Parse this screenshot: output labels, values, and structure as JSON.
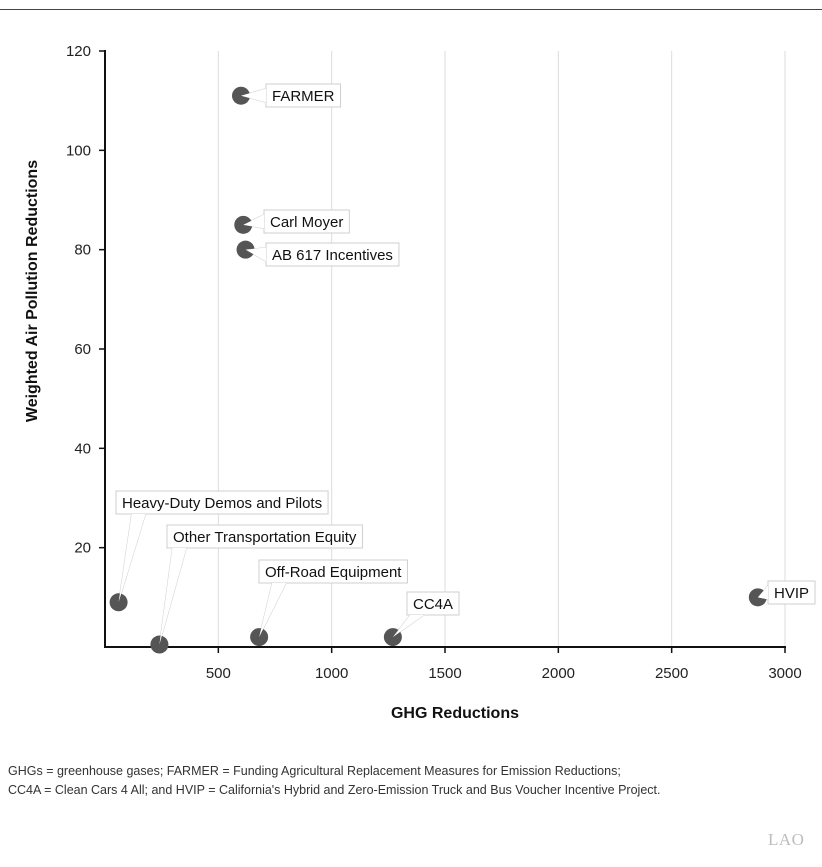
{
  "chart_data": {
    "type": "scatter",
    "xlabel": "GHG Reductions",
    "ylabel": "Weighted Air Pollution Reductions",
    "xlim": [
      0,
      3000
    ],
    "ylim": [
      0,
      120
    ],
    "xticks": [
      500,
      1000,
      1500,
      2000,
      2500,
      3000
    ],
    "yticks": [
      20,
      40,
      60,
      80,
      100,
      120
    ],
    "grid": "vertical",
    "points": [
      {
        "label": "FARMER",
        "x": 600,
        "y": 111
      },
      {
        "label": "Carl Moyer",
        "x": 610,
        "y": 85
      },
      {
        "label": "AB 617 Incentives",
        "x": 620,
        "y": 80
      },
      {
        "label": "Heavy-Duty Demos and Pilots",
        "x": 60,
        "y": 9
      },
      {
        "label": "Other Transportation Equity",
        "x": 240,
        "y": 0.5
      },
      {
        "label": "Off-Road Equipment",
        "x": 680,
        "y": 2
      },
      {
        "label": "CC4A",
        "x": 1270,
        "y": 2
      },
      {
        "label": "HVIP",
        "x": 2880,
        "y": 10
      }
    ],
    "point_color": "#555555"
  },
  "footnote": {
    "line1": "GHGs = greenhouse gases; FARMER = Funding Agricultural Replacement Measures for Emission Reductions;",
    "line2": "CC4A = Clean Cars 4 All; and HVIP = California's Hybrid and Zero-Emission Truck and Bus Voucher Incentive Project."
  },
  "logo": {
    "text": "LAO"
  }
}
